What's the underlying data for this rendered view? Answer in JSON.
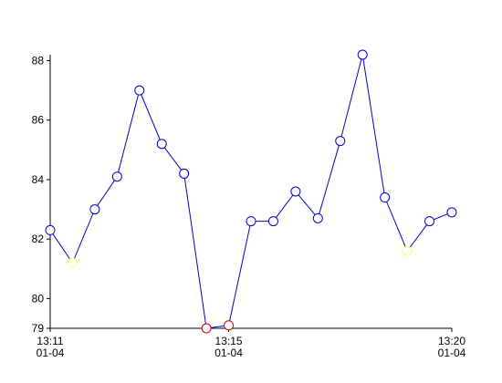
{
  "chart_data": {
    "type": "line",
    "x": [
      "01-04 13:11:00",
      "01-04 13:11:30",
      "01-04 13:12:00",
      "01-04 13:12:30",
      "01-04 13:13:00",
      "01-04 13:13:30",
      "01-04 13:14:00",
      "01-04 13:14:30",
      "01-04 13:15:00",
      "01-04 13:15:30",
      "01-04 13:16:00",
      "01-04 13:16:30",
      "01-04 13:17:00",
      "01-04 13:17:30",
      "01-04 13:18:00",
      "01-04 13:18:30",
      "01-04 13:19:00",
      "01-04 13:19:30",
      "01-04 13:20:00"
    ],
    "series": [
      {
        "color": "#0000cc",
        "values": [
          82.3,
          81.2,
          83.0,
          84.1,
          87.0,
          85.2,
          84.2,
          79.0,
          79.1,
          82.6,
          82.6,
          83.6,
          82.7,
          85.3,
          88.2,
          83.4,
          81.6,
          82.6,
          82.9
        ],
        "marker_colors": [
          "#0000cc",
          "#ffff66",
          "#0000cc",
          "#0000cc",
          "#0000cc",
          "#0000cc",
          "#0000cc",
          "#cc0000",
          "#cc0000",
          "#0000cc",
          "#0000cc",
          "#0000cc",
          "#0000cc",
          "#0000cc",
          "#0000cc",
          "#0000cc",
          "#ffff66",
          "#0000cc",
          "#0000cc"
        ]
      }
    ],
    "xlim": [
      "01-04 13:11:00",
      "01-04 13:20:00"
    ],
    "xticks": [
      {
        "value": "01-04 13:11:00",
        "label": [
          "13:11",
          "01-04"
        ]
      },
      {
        "value": "01-04 13:15:00",
        "label": [
          "13:15",
          "01-04"
        ]
      },
      {
        "value": "01-04 13:20:00",
        "label": [
          "13:20",
          "01-04"
        ]
      }
    ],
    "ylim": [
      79,
      88.2
    ],
    "yticks": [
      79,
      80,
      82,
      84,
      86,
      88
    ]
  }
}
